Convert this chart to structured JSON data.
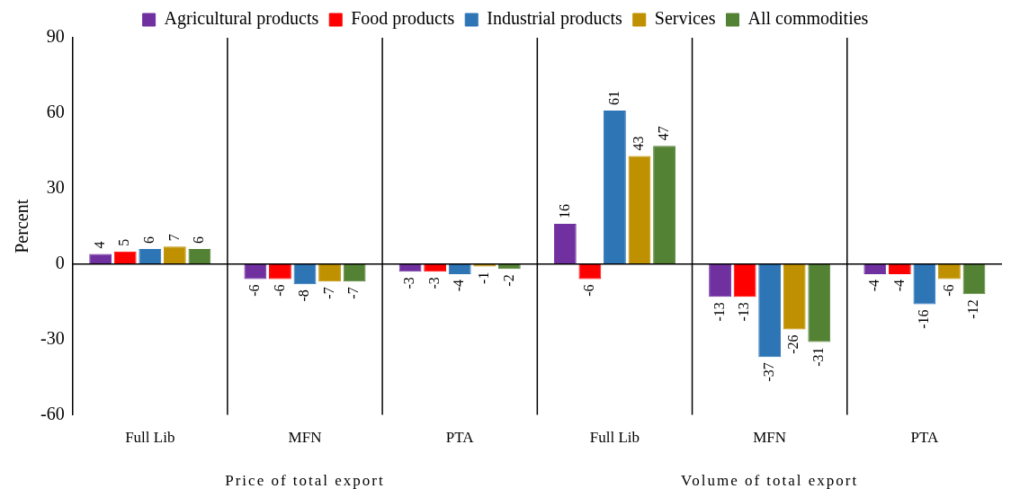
{
  "chart_data": {
    "type": "bar",
    "ylabel": "Percent",
    "categories": [
      "Full Lib",
      "MFN",
      "PTA",
      "Full Lib",
      "MFN",
      "PTA"
    ],
    "annotations": [
      "Price of total export",
      "Volume of total export"
    ],
    "series": [
      {
        "name": "Agricultural products",
        "color": "#7030a0",
        "values": [
          4,
          -6,
          -3,
          16,
          -13,
          -4
        ]
      },
      {
        "name": "Food products",
        "color": "#ff0000",
        "values": [
          5,
          -6,
          -3,
          -6,
          -13,
          -4
        ]
      },
      {
        "name": "Industrial products",
        "color": "#2e75b6",
        "values": [
          6,
          -8,
          -4,
          61,
          -37,
          -16
        ]
      },
      {
        "name": "Services",
        "color": "#bf9000",
        "values": [
          7,
          -7,
          -1,
          43,
          -26,
          -6
        ]
      },
      {
        "name": "All commodities",
        "color": "#548235",
        "values": [
          6,
          -7,
          -2,
          47,
          -31,
          -12
        ]
      }
    ],
    "ylim": [
      -60,
      90
    ],
    "yticks": [
      -60,
      -30,
      0,
      30,
      60,
      90
    ],
    "ref_lines": [
      {
        "axis": "y",
        "value": 0,
        "color": "#000000"
      }
    ],
    "grid": false,
    "legend": "top",
    "data_labels": true
  }
}
